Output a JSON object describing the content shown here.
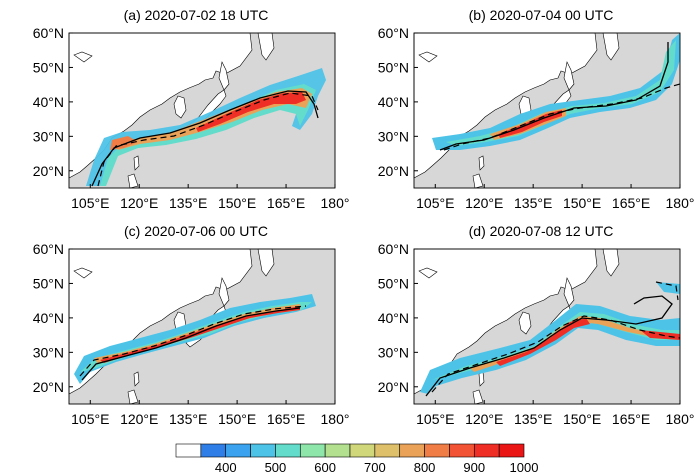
{
  "figure": {
    "panels": [
      {
        "id": "a",
        "title": "(a) 2020-07-02 18 UTC"
      },
      {
        "id": "b",
        "title": "(b) 2020-07-04 00 UTC"
      },
      {
        "id": "c",
        "title": "(c) 2020-07-06 00 UTC"
      },
      {
        "id": "d",
        "title": "(d) 2020-07-08 12 UTC"
      }
    ],
    "lat_ticks": [
      "20°N",
      "30°N",
      "40°N",
      "50°N",
      "60°N"
    ],
    "lon_ticks": [
      "105°E",
      "120°E",
      "135°E",
      "150°E",
      "165°E",
      "180°"
    ],
    "colorbar": {
      "labels": [
        "400",
        "500",
        "600",
        "700",
        "800",
        "900",
        "1000"
      ],
      "colors": [
        "#ffffff",
        "#2f7ee8",
        "#3aa2ee",
        "#4ec3e8",
        "#63dccb",
        "#8ee6ab",
        "#b2e08e",
        "#cfd77a",
        "#dfc06a",
        "#e9a258",
        "#f07d46",
        "#f25334",
        "#ef2f25",
        "#ea1616"
      ]
    },
    "colors": {
      "land": "#ffffff",
      "ocean": "#d7d7d7",
      "frame": "#000000"
    }
  }
}
